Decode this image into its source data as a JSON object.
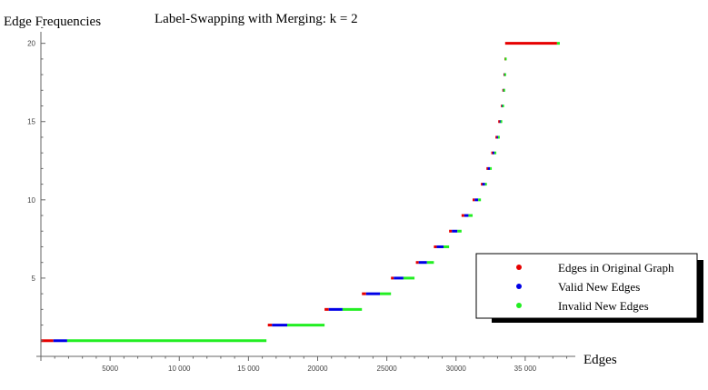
{
  "chart_data": {
    "type": "scatter",
    "title": "Label-Swapping with Merging: k = 2",
    "xlabel": "Edges",
    "ylabel": "Edge Frequencies",
    "xlim": [
      0,
      40000
    ],
    "ylim": [
      0,
      21.2
    ],
    "x_ticks": [
      5000,
      10000,
      15000,
      20000,
      25000,
      30000,
      35000
    ],
    "x_tick_labels": [
      "5000",
      "10 000",
      "15 000",
      "20000",
      "25000",
      "30000",
      "35 000"
    ],
    "y_ticks": [
      5,
      10,
      15,
      20
    ],
    "y_tick_labels": [
      "5",
      "10",
      "15",
      "20"
    ],
    "legend_position": "bottom-right",
    "colors": {
      "original": "#e60000",
      "valid": "#0000e6",
      "invalid": "#22ee22"
    },
    "series": [
      {
        "name": "Edges in Original Graph",
        "color": "#e60000",
        "segments": [
          {
            "y": 1,
            "x0": 0,
            "x1": 900
          },
          {
            "y": 2,
            "x0": 16400,
            "x1": 16700
          },
          {
            "y": 3,
            "x0": 20500,
            "x1": 20800
          },
          {
            "y": 4,
            "x0": 23200,
            "x1": 23500
          },
          {
            "y": 5,
            "x0": 25300,
            "x1": 25500
          },
          {
            "y": 6,
            "x0": 27100,
            "x1": 27300
          },
          {
            "y": 7,
            "x0": 28400,
            "x1": 28600
          },
          {
            "y": 8,
            "x0": 29500,
            "x1": 29700
          },
          {
            "y": 9,
            "x0": 30400,
            "x1": 30600
          },
          {
            "y": 10,
            "x0": 31200,
            "x1": 31350
          },
          {
            "y": 11,
            "x0": 31800,
            "x1": 31900
          },
          {
            "y": 12,
            "x0": 32200,
            "x1": 32300
          },
          {
            "y": 13,
            "x0": 32550,
            "x1": 32650
          },
          {
            "y": 14,
            "x0": 32850,
            "x1": 32950
          },
          {
            "y": 15,
            "x0": 33050,
            "x1": 33150
          },
          {
            "y": 16,
            "x0": 33250,
            "x1": 33300
          },
          {
            "y": 17,
            "x0": 33350,
            "x1": 33400
          },
          {
            "y": 18,
            "x0": 33430,
            "x1": 33470
          },
          {
            "y": 19,
            "x0": 33500,
            "x1": 33530
          },
          {
            "y": 20,
            "x0": 33550,
            "x1": 37300
          }
        ]
      },
      {
        "name": "Valid New Edges",
        "color": "#0000e6",
        "segments": [
          {
            "y": 1,
            "x0": 900,
            "x1": 1900
          },
          {
            "y": 2,
            "x0": 16700,
            "x1": 17800
          },
          {
            "y": 3,
            "x0": 20800,
            "x1": 21800
          },
          {
            "y": 4,
            "x0": 23500,
            "x1": 24500
          },
          {
            "y": 5,
            "x0": 25500,
            "x1": 26200
          },
          {
            "y": 6,
            "x0": 27300,
            "x1": 27900
          },
          {
            "y": 7,
            "x0": 28600,
            "x1": 29100
          },
          {
            "y": 8,
            "x0": 29700,
            "x1": 30100
          },
          {
            "y": 9,
            "x0": 30600,
            "x1": 30900
          },
          {
            "y": 10,
            "x0": 31350,
            "x1": 31600
          },
          {
            "y": 11,
            "x0": 31900,
            "x1": 32100
          },
          {
            "y": 12,
            "x0": 32300,
            "x1": 32450
          },
          {
            "y": 13,
            "x0": 32650,
            "x1": 32780
          },
          {
            "y": 14,
            "x0": 32950,
            "x1": 33030
          },
          {
            "y": 15,
            "x0": 33150,
            "x1": 33210
          },
          {
            "y": 16,
            "x0": 33300,
            "x1": 33340
          },
          {
            "y": 17,
            "x0": 33400,
            "x1": 33420
          },
          {
            "y": 18,
            "x0": 33470,
            "x1": 33490
          }
        ]
      },
      {
        "name": "Invalid New Edges",
        "color": "#22ee22",
        "segments": [
          {
            "y": 1,
            "x0": 1900,
            "x1": 16300
          },
          {
            "y": 2,
            "x0": 17800,
            "x1": 20500
          },
          {
            "y": 3,
            "x0": 21800,
            "x1": 23200
          },
          {
            "y": 4,
            "x0": 24500,
            "x1": 25300
          },
          {
            "y": 5,
            "x0": 26200,
            "x1": 27000
          },
          {
            "y": 6,
            "x0": 27900,
            "x1": 28400
          },
          {
            "y": 7,
            "x0": 29100,
            "x1": 29500
          },
          {
            "y": 8,
            "x0": 30100,
            "x1": 30400
          },
          {
            "y": 9,
            "x0": 30900,
            "x1": 31200
          },
          {
            "y": 10,
            "x0": 31600,
            "x1": 31800
          },
          {
            "y": 11,
            "x0": 32100,
            "x1": 32200
          },
          {
            "y": 12,
            "x0": 32450,
            "x1": 32550
          },
          {
            "y": 13,
            "x0": 32780,
            "x1": 32850
          },
          {
            "y": 14,
            "x0": 33030,
            "x1": 33100
          },
          {
            "y": 15,
            "x0": 33210,
            "x1": 33260
          },
          {
            "y": 16,
            "x0": 33340,
            "x1": 33380
          },
          {
            "y": 17,
            "x0": 33420,
            "x1": 33450
          },
          {
            "y": 18,
            "x0": 33490,
            "x1": 33520
          },
          {
            "y": 19,
            "x0": 33530,
            "x1": 33560
          },
          {
            "y": 20,
            "x0": 37300,
            "x1": 37500
          }
        ]
      }
    ]
  }
}
